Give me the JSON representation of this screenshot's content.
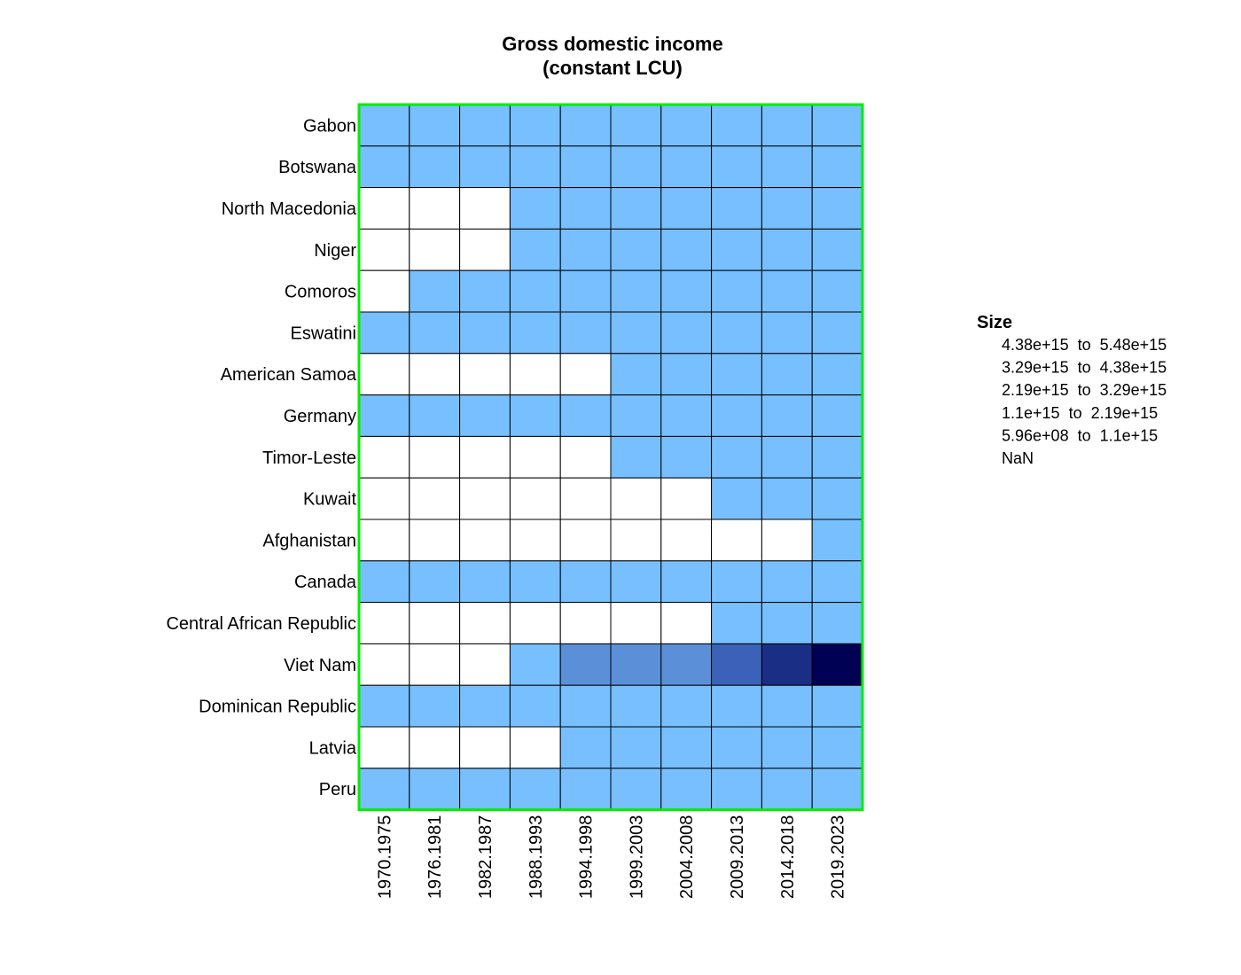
{
  "chart_data": {
    "type": "heatmap",
    "title_lines": [
      "Gross domestic income",
      "(constant LCU)"
    ],
    "xlabel": "",
    "ylabel": "",
    "x": [
      "1970.1975",
      "1976.1981",
      "1982.1987",
      "1988.1993",
      "1994.1998",
      "1999.2003",
      "2004.2008",
      "2009.2013",
      "2014.2018",
      "2019.2023"
    ],
    "y": [
      "Gabon",
      "Botswana",
      "North Macedonia",
      "Niger",
      "Comoros",
      "Eswatini",
      "American Samoa",
      "Germany",
      "Timor-Leste",
      "Kuwait",
      "Afghanistan",
      "Canada",
      "Central African Republic",
      "Viet Nam",
      "Dominican Republic",
      "Latvia",
      "Peru"
    ],
    "bins": [
      {
        "label": "4.38e+15  to  5.48e+15",
        "color": "#000055"
      },
      {
        "label": "3.29e+15  to  4.38e+15",
        "color": "#1a2e86"
      },
      {
        "label": "2.19e+15  to  3.29e+15",
        "color": "#3b62b8"
      },
      {
        "label": "1.1e+15  to  2.19e+15",
        "color": "#5b8fd8"
      },
      {
        "label": "5.96e+08  to  1.1e+15",
        "color": "#77bfff"
      },
      {
        "label": "NaN",
        "color": "#ffffff"
      }
    ],
    "cells": [
      [
        4,
        4,
        4,
        4,
        4,
        4,
        4,
        4,
        4,
        4
      ],
      [
        4,
        4,
        4,
        4,
        4,
        4,
        4,
        4,
        4,
        4
      ],
      [
        5,
        5,
        5,
        4,
        4,
        4,
        4,
        4,
        4,
        4
      ],
      [
        5,
        5,
        5,
        4,
        4,
        4,
        4,
        4,
        4,
        4
      ],
      [
        5,
        4,
        4,
        4,
        4,
        4,
        4,
        4,
        4,
        4
      ],
      [
        4,
        4,
        4,
        4,
        4,
        4,
        4,
        4,
        4,
        4
      ],
      [
        5,
        5,
        5,
        5,
        5,
        4,
        4,
        4,
        4,
        4
      ],
      [
        4,
        4,
        4,
        4,
        4,
        4,
        4,
        4,
        4,
        4
      ],
      [
        5,
        5,
        5,
        5,
        5,
        4,
        4,
        4,
        4,
        4
      ],
      [
        5,
        5,
        5,
        5,
        5,
        5,
        5,
        4,
        4,
        4
      ],
      [
        5,
        5,
        5,
        5,
        5,
        5,
        5,
        5,
        5,
        4
      ],
      [
        4,
        4,
        4,
        4,
        4,
        4,
        4,
        4,
        4,
        4
      ],
      [
        5,
        5,
        5,
        5,
        5,
        5,
        5,
        4,
        4,
        4
      ],
      [
        5,
        5,
        5,
        4,
        3,
        3,
        3,
        2,
        1,
        0
      ],
      [
        4,
        4,
        4,
        4,
        4,
        4,
        4,
        4,
        4,
        4
      ],
      [
        5,
        5,
        5,
        5,
        4,
        4,
        4,
        4,
        4,
        4
      ],
      [
        4,
        4,
        4,
        4,
        4,
        4,
        4,
        4,
        4,
        4
      ]
    ],
    "legend": {
      "title": "Size",
      "placement": "right"
    },
    "frame_color": "#00ee00",
    "grid": true
  }
}
